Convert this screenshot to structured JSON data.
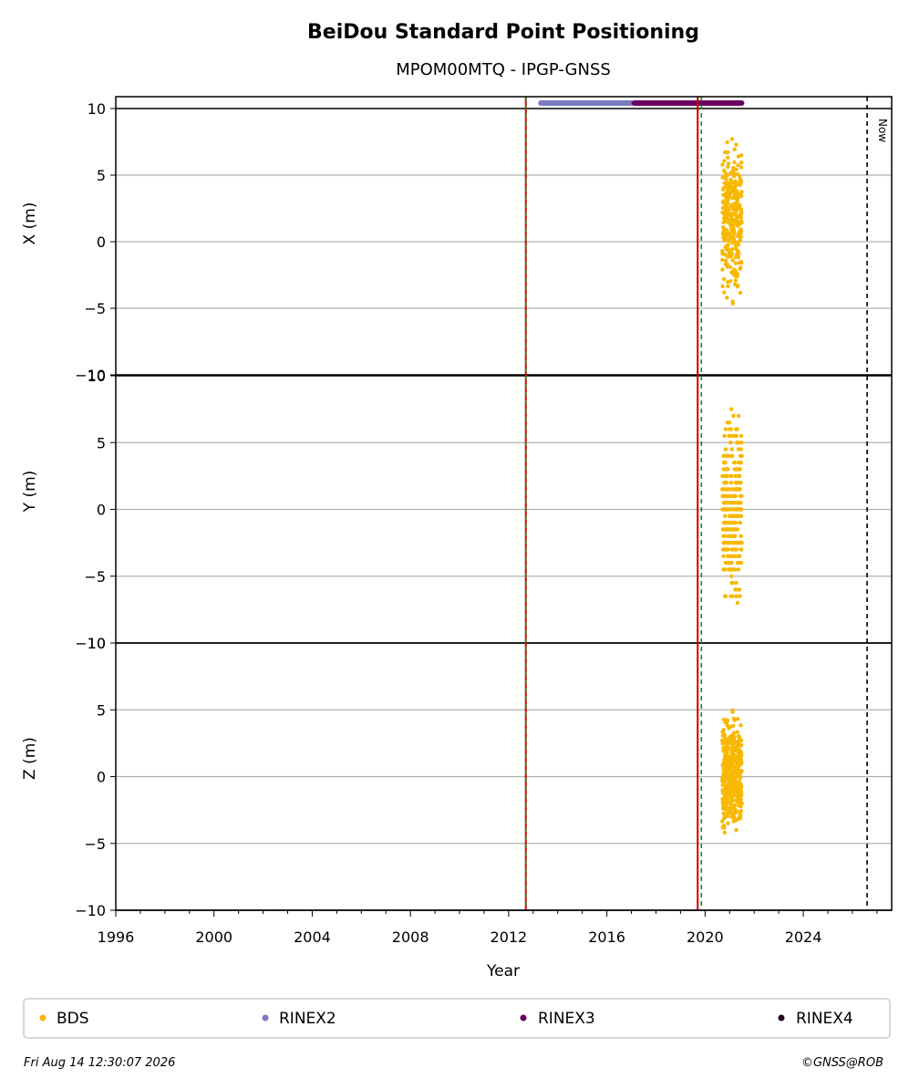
{
  "chart_data": {
    "type": "scatter",
    "title": "BeiDou Standard Point Positioning",
    "subtitle": "MPOM00MTQ - IPGP-GNSS",
    "xlabel": "Year",
    "xlim": [
      1996,
      2027.6
    ],
    "x_ticks": [
      "1996",
      "2000",
      "2004",
      "2008",
      "2012",
      "2016",
      "2020",
      "2024"
    ],
    "y_ticks": [
      "10",
      "5",
      "0",
      "−5",
      "−10"
    ],
    "panels": [
      {
        "ylabel": "X (m)",
        "ylim": [
          -10,
          10
        ],
        "bds_year_range": [
          2020.7,
          2021.5
        ],
        "bds_y_range": [
          -5,
          8.5
        ]
      },
      {
        "ylabel": "Y (m)",
        "ylim": [
          -10,
          10
        ],
        "bds_year_range": [
          2020.7,
          2021.5
        ],
        "bds_y_range": [
          -8,
          8
        ]
      },
      {
        "ylabel": "Z (m)",
        "ylim": [
          -10,
          10
        ],
        "bds_year_range": [
          2020.7,
          2021.5
        ],
        "bds_y_range": [
          -5.3,
          5.2
        ]
      }
    ],
    "rinex_bars": [
      {
        "name": "RINEX2",
        "start": 2013.2,
        "end": 2017.1,
        "color": "#7b7bbf"
      },
      {
        "name": "RINEX3",
        "start": 2017.0,
        "end": 2021.6,
        "color": "#6b0060"
      }
    ],
    "vertical_lines": [
      {
        "year": 2012.7,
        "color": "#cc0000",
        "style": "solid"
      },
      {
        "year": 2012.7,
        "color": "#1a8a1a",
        "style": "dashed"
      },
      {
        "year": 2019.7,
        "color": "#cc0000",
        "style": "solid"
      },
      {
        "year": 2019.85,
        "color": "#1a8a1a",
        "style": "dashed"
      },
      {
        "year": 2026.6,
        "color": "#000000",
        "style": "dashed",
        "label": "Now"
      }
    ],
    "grid": true,
    "legend_position": "bottom",
    "legend": [
      {
        "name": "BDS",
        "color": "#f8b800"
      },
      {
        "name": "RINEX2",
        "color": "#7b7bbf"
      },
      {
        "name": "RINEX3",
        "color": "#6b0060"
      },
      {
        "name": "RINEX4",
        "color": "#2a0020"
      }
    ],
    "bds_color": "#f8b800"
  },
  "footer": {
    "timestamp": "Fri Aug 14 12:30:07 2026",
    "credit": "©GNSS@ROB"
  }
}
